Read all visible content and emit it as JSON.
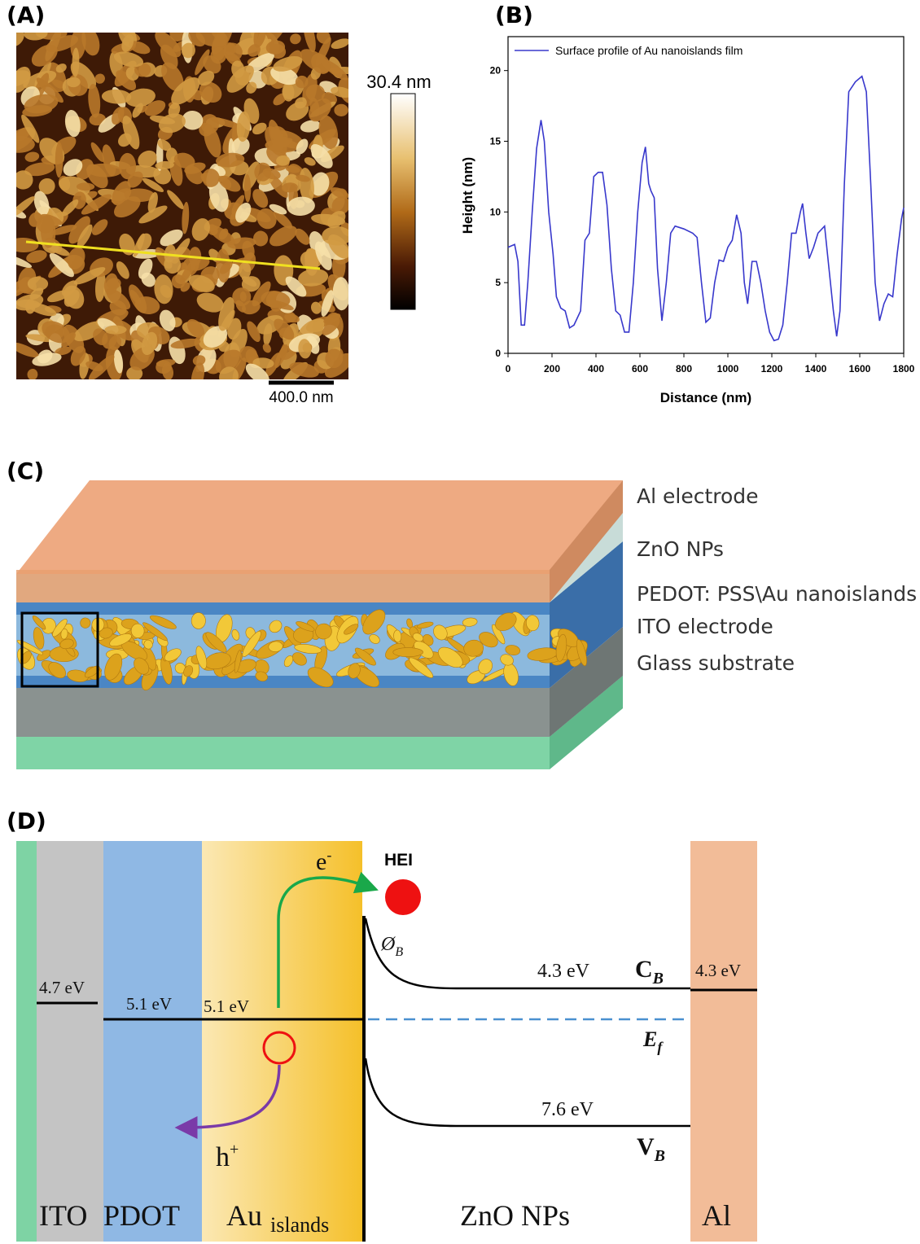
{
  "chart_data": {
    "type": "line",
    "panel_label": "(B)",
    "x_label": "Distance (nm)",
    "y_label": "Height (nm)",
    "x": [
      0,
      30,
      45,
      60,
      75,
      90,
      110,
      130,
      150,
      165,
      185,
      205,
      220,
      240,
      260,
      280,
      300,
      330,
      350,
      370,
      390,
      410,
      430,
      450,
      470,
      490,
      510,
      530,
      550,
      570,
      590,
      610,
      625,
      640,
      650,
      665,
      680,
      700,
      720,
      740,
      760,
      800,
      840,
      860,
      880,
      900,
      920,
      940,
      960,
      980,
      1000,
      1020,
      1040,
      1060,
      1075,
      1090,
      1110,
      1130,
      1150,
      1170,
      1190,
      1210,
      1230,
      1250,
      1270,
      1290,
      1310,
      1330,
      1340,
      1355,
      1370,
      1390,
      1410,
      1440,
      1460,
      1480,
      1495,
      1510,
      1530,
      1550,
      1580,
      1610,
      1630,
      1650,
      1670,
      1690,
      1710,
      1730,
      1750,
      1770,
      1790,
      1800
    ],
    "series": [
      {
        "name": "Surface profile of Au nanoislands film",
        "color": "#3838cc",
        "values": [
          7.5,
          7.7,
          6.5,
          2.0,
          2.0,
          5,
          10,
          14.5,
          16.5,
          15,
          10,
          7,
          4,
          3.2,
          3,
          1.8,
          2,
          3,
          8,
          8.5,
          12.5,
          12.8,
          12.8,
          10.5,
          6,
          3,
          2.7,
          1.5,
          1.5,
          5,
          10,
          13.5,
          14.6,
          12,
          11.5,
          11,
          6,
          2.3,
          5,
          8.5,
          9,
          8.8,
          8.5,
          8.2,
          5,
          2.2,
          2.5,
          5,
          6.6,
          6.5,
          7.5,
          8,
          9.8,
          8.5,
          5,
          3.5,
          6.5,
          6.5,
          5,
          3,
          1.5,
          0.9,
          1.0,
          2,
          5,
          8.5,
          8.5,
          10,
          10.6,
          8.5,
          6.7,
          7.5,
          8.5,
          9,
          6,
          3,
          1.2,
          3,
          12,
          18.5,
          19.2,
          19.6,
          18.5,
          12,
          5,
          2.3,
          3.5,
          4.2,
          4,
          7,
          9.5,
          10.3
        ]
      }
    ],
    "xlim": [
      0,
      1800
    ],
    "ylim": [
      0,
      22.4
    ],
    "xticks": [
      0,
      200,
      400,
      600,
      800,
      1000,
      1200,
      1400,
      1600,
      1800
    ],
    "yticks": [
      0,
      5,
      10,
      15,
      20
    ],
    "legend": "upper left"
  },
  "panel_a": {
    "label": "(A)",
    "colorbar_max": "30.4 nm",
    "scale_bar": "400.0 nm"
  },
  "panel_c": {
    "label": "(C)",
    "layers": [
      "Al electrode",
      "ZnO NPs",
      "PEDOT: PSS\\Au nanoislands",
      "ITO electrode",
      "Glass substrate"
    ]
  },
  "panel_d": {
    "label": "(D)",
    "electron": {
      "base": "e",
      "sup": "-"
    },
    "hei": "HEI",
    "barrier": {
      "base": "Ø",
      "sub": "B"
    },
    "cb_energy": "4.3 eV",
    "cb": {
      "base": "C",
      "sub": "B"
    },
    "al_energy": "4.3 eV",
    "ito_energy": "4.7 eV",
    "pedot_energy": "5.1 eV",
    "au_energy": "5.1 eV",
    "fermi": {
      "base": "E",
      "sub": "f"
    },
    "vb_energy": "7.6 eV",
    "vb": {
      "base": "V",
      "sub": "B"
    },
    "hole": {
      "base": "h",
      "sup": "+"
    },
    "ito": "ITO",
    "pdot": "PDOT",
    "au": {
      "base": "Au",
      "sub": "islands"
    },
    "zno": "ZnO NPs",
    "al": "Al"
  }
}
